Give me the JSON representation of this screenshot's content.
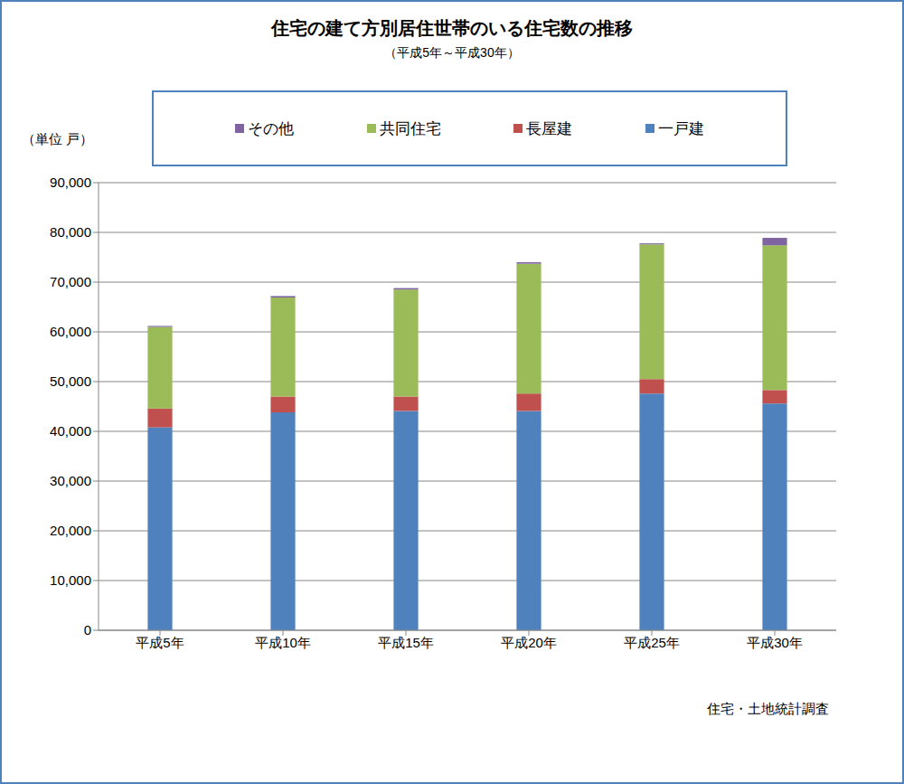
{
  "chart_data": {
    "type": "bar",
    "title": "住宅の建て方別居住世帯のいる住宅数の推移",
    "subtitle": "（平成5年～平成30年）",
    "y_label": "（単位 戸）",
    "source": "住宅・土地統計調査",
    "categories": [
      "平成5年",
      "平成10年",
      "平成15年",
      "平成20年",
      "平成25年",
      "平成30年"
    ],
    "series": [
      {
        "name": "一戸建",
        "color": "#4f81bd",
        "values": [
          40800,
          43800,
          44100,
          44100,
          47600,
          45600
        ]
      },
      {
        "name": "長屋建",
        "color": "#c0504d",
        "values": [
          3800,
          3200,
          2900,
          3500,
          2900,
          2700
        ]
      },
      {
        "name": "共同住宅",
        "color": "#9bbb59",
        "values": [
          16400,
          19900,
          21500,
          26100,
          27100,
          29100
        ]
      },
      {
        "name": "その他",
        "color": "#8064a2",
        "values": [
          200,
          300,
          300,
          300,
          200,
          1500
        ]
      }
    ],
    "ylim": [
      0,
      90000
    ],
    "yticks": [
      0,
      {
        "value": 10000,
        "label": "10,000"
      },
      {
        "value": 20000,
        "label": "20,000"
      },
      {
        "value": 30000,
        "label": "30,000"
      },
      {
        "value": 40000,
        "label": "40,000"
      },
      {
        "value": 50000,
        "label": "50,000"
      },
      {
        "value": 60000,
        "label": "60,000"
      },
      {
        "value": 70000,
        "label": "70,000"
      },
      {
        "value": 80000,
        "label": "80,000"
      },
      {
        "value": 90000,
        "label": "90,000"
      }
    ],
    "stacked": true,
    "grid": true,
    "legend": "top"
  }
}
